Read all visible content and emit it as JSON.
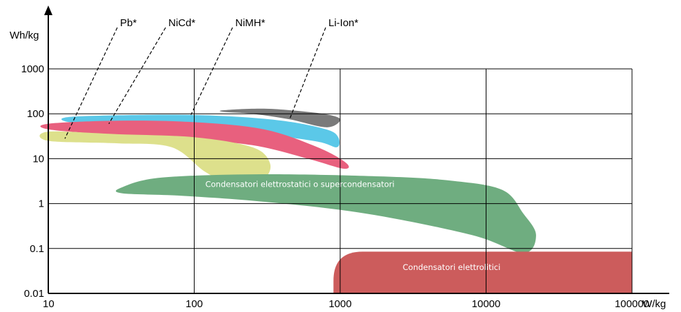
{
  "chart_data": {
    "type": "area",
    "title": "",
    "xlabel": "W/kg",
    "ylabel": "Wh/kg",
    "xscale": "log",
    "yscale": "log",
    "xlim": [
      10,
      100000
    ],
    "ylim": [
      0.01,
      1000
    ],
    "grid": true,
    "x_ticks": [
      "10",
      "100",
      "1000",
      "10000",
      "100000"
    ],
    "y_ticks": [
      "0.01",
      "0.1",
      "1",
      "10",
      "100",
      "1000"
    ],
    "series": [
      {
        "name": "Li-Ion*",
        "color": "#7a7a7a",
        "points": [
          [
            160,
            120
          ],
          [
            300,
            130
          ],
          [
            600,
            110
          ],
          [
            900,
            90
          ],
          [
            1000,
            70
          ],
          [
            800,
            50
          ],
          [
            450,
            75
          ],
          [
            250,
            100
          ],
          [
            160,
            110
          ]
        ]
      },
      {
        "name": "NiMH*",
        "color": "#5bc8e8",
        "points": [
          [
            14,
            85
          ],
          [
            50,
            95
          ],
          [
            150,
            90
          ],
          [
            400,
            70
          ],
          [
            800,
            45
          ],
          [
            970,
            30
          ],
          [
            950,
            18
          ],
          [
            700,
            24
          ],
          [
            300,
            35
          ],
          [
            100,
            50
          ],
          [
            30,
            60
          ],
          [
            14,
            65
          ]
        ]
      },
      {
        "name": "NiCd*",
        "color": "#e8607e",
        "points": [
          [
            10,
            60
          ],
          [
            30,
            70
          ],
          [
            100,
            65
          ],
          [
            300,
            45
          ],
          [
            700,
            18
          ],
          [
            1100,
            8
          ],
          [
            1050,
            6
          ],
          [
            600,
            10
          ],
          [
            250,
            20
          ],
          [
            80,
            28
          ],
          [
            25,
            35
          ],
          [
            10,
            45
          ]
        ]
      },
      {
        "name": "Pb*",
        "color": "#dde08c",
        "points": [
          [
            10,
            40
          ],
          [
            30,
            35
          ],
          [
            100,
            30
          ],
          [
            250,
            18
          ],
          [
            330,
            8
          ],
          [
            300,
            3.5
          ],
          [
            200,
            2.3
          ],
          [
            120,
            5
          ],
          [
            70,
            18
          ],
          [
            30,
            22
          ],
          [
            10,
            25
          ]
        ]
      },
      {
        "name": "Condensatori elettrostatici o supercondensatori",
        "color": "#6fad80",
        "points": [
          [
            32,
            2.3
          ],
          [
            60,
            3.8
          ],
          [
            300,
            4.5
          ],
          [
            2000,
            4
          ],
          [
            6000,
            3.2
          ],
          [
            13000,
            2
          ],
          [
            18000,
            0.6
          ],
          [
            22000,
            0.2
          ],
          [
            18000,
            0.08
          ],
          [
            8000,
            0.2
          ],
          [
            1500,
            0.6
          ],
          [
            300,
            1.1
          ],
          [
            80,
            1.5
          ],
          [
            32,
            1.7
          ]
        ]
      },
      {
        "name": "Condensatori elettrolitici",
        "color": "#cc5c5c",
        "points": [
          [
            900,
            0.01
          ],
          [
            900,
            0.04
          ],
          [
            1500,
            0.08
          ],
          [
            3000,
            0.085
          ],
          [
            100000,
            0.085
          ],
          [
            100000,
            0.01
          ]
        ]
      }
    ]
  }
}
